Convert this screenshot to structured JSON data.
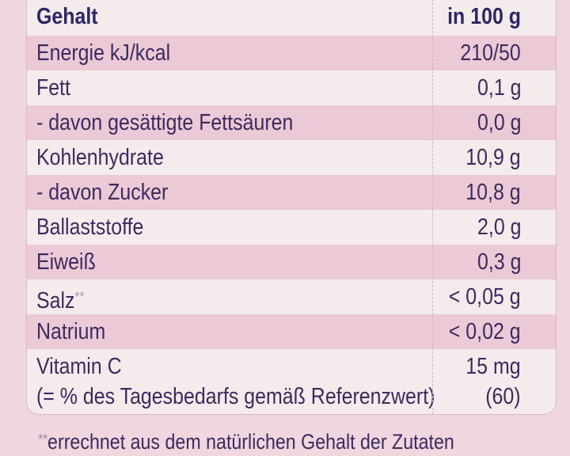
{
  "header": {
    "label": "Gehalt",
    "value": "in 100 g"
  },
  "rows": [
    {
      "label": "Energie kJ/kcal",
      "value": "210/50",
      "highlight": true
    },
    {
      "label": "Fett",
      "value": "0,1 g",
      "highlight": false
    },
    {
      "label": "- davon gesättigte Fettsäuren",
      "value": "0,0 g",
      "highlight": true
    },
    {
      "label": "Kohlenhydrate",
      "value": "10,9 g",
      "highlight": false
    },
    {
      "label": "- davon Zucker",
      "value": "10,8 g",
      "highlight": true
    },
    {
      "label": "Ballaststoffe",
      "value": "2,0 g",
      "highlight": false
    },
    {
      "label": "Eiweiß",
      "value": "0,3 g",
      "highlight": true
    },
    {
      "label": "Salz",
      "marker": "**",
      "value": "< 0,05 g",
      "highlight": false
    },
    {
      "label": "Natrium",
      "value": "< 0,02 g",
      "highlight": true
    },
    {
      "label": "Vitamin C",
      "value": "15 mg",
      "highlight": false
    },
    {
      "label": "(= % des Tagesbedarfs gemäß Referenzwert)",
      "value": "(60)",
      "highlight": false
    }
  ],
  "footnote": {
    "marker": "**",
    "text": "errechnet aus dem natürlichen Gehalt der Zutaten"
  },
  "colors": {
    "text": "#3b2b5e",
    "highlight_row": "#ecc9d6",
    "plain_row": "#f4ecec",
    "background": "#efd6df"
  }
}
